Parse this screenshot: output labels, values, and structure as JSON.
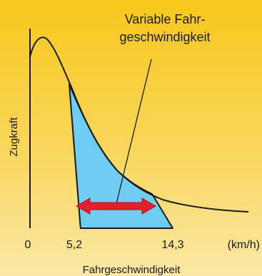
{
  "chart_data": {
    "type": "area",
    "title_lines": [
      "Variable Fahr-",
      "geschwindigkeit"
    ],
    "xlabel": "Fahrgeschwindigkeit",
    "ylabel": "Zugkraft",
    "x_unit": "(km/h)",
    "x_ticks": [
      "0",
      "5,2",
      "14,3"
    ],
    "x_tick_values": [
      0,
      5.2,
      14.3
    ],
    "shaded_region": {
      "x_start": 5.2,
      "x_end": 14.3
    },
    "colors": {
      "background_top": "#f7c81c",
      "background_bottom": "#fbe8a6",
      "curve": "#1a1a1a",
      "shaded_fill": "#6fcdf2",
      "arrow": "#e4202a"
    },
    "grid": false
  }
}
